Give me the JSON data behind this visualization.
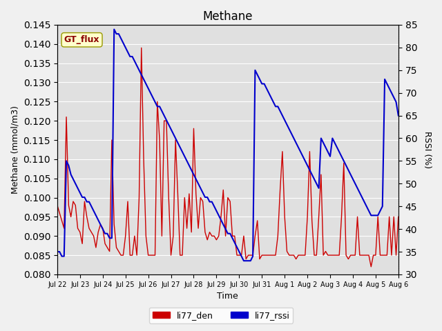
{
  "title": "Methane",
  "ylabel_left": "Methane (mmol/m3)",
  "ylabel_right": "RSSI (%)",
  "xlabel": "Time",
  "ylim_left": [
    0.08,
    0.145
  ],
  "ylim_right": [
    30,
    85
  ],
  "legend_label1": "li77_den",
  "legend_label2": "li77_rssi",
  "annotation_box": "GT_flux",
  "color_red": "#cc0000",
  "color_blue": "#0000cc",
  "background_color": "#e8e8e8",
  "plot_bg": "#d8d8d8",
  "x_ticks": [
    "Jul 22",
    "Jul 23",
    "Jul 24",
    "Jul 25",
    "Jul 26",
    "Jul 27",
    "Jul 28",
    "Jul 29",
    "Jul 30",
    "Jul 31",
    "Aug 1",
    "Aug 2",
    "Aug 3",
    "Aug 4",
    "Aug 5",
    "Aug 6"
  ],
  "red_x": [
    0,
    0.1,
    0.2,
    0.3,
    0.4,
    0.5,
    0.6,
    0.7,
    0.8,
    0.9,
    1.0,
    1.1,
    1.2,
    1.3,
    1.4,
    1.5,
    1.6,
    1.7,
    1.8,
    1.9,
    2.0,
    2.1,
    2.2,
    2.3,
    2.4,
    2.5,
    2.6,
    2.7,
    2.8,
    2.9,
    3.0,
    3.1,
    3.2,
    3.3,
    3.4,
    3.5,
    3.6,
    3.7,
    3.8,
    3.9,
    4.0,
    4.1,
    4.2,
    4.3,
    4.4,
    4.5,
    4.6,
    4.7,
    4.8,
    4.9,
    5.0,
    5.1,
    5.2,
    5.3,
    5.4,
    5.5,
    5.6,
    5.7,
    5.8,
    5.9,
    6.0,
    6.1,
    6.2,
    6.3,
    6.4,
    6.5,
    6.6,
    6.7,
    6.8,
    6.9,
    7.0,
    7.1,
    7.2,
    7.3,
    7.4,
    7.5,
    7.6,
    7.7,
    7.8,
    7.9,
    8.0,
    8.1,
    8.2,
    8.3,
    8.4,
    8.5,
    8.6,
    8.7,
    8.8,
    8.9,
    9.0,
    9.1,
    9.2,
    9.3,
    9.4,
    9.5,
    9.6,
    9.7,
    9.8,
    9.9,
    10.0,
    10.1,
    10.2,
    10.3,
    10.4,
    10.5,
    10.6,
    10.7,
    10.8,
    10.9,
    11.0,
    11.1,
    11.2,
    11.3,
    11.4,
    11.5,
    11.6,
    11.7,
    11.8,
    11.9,
    12.0,
    12.1,
    12.2,
    12.3,
    12.4,
    12.5,
    12.6,
    12.7,
    12.8,
    12.9,
    13.0,
    13.1,
    13.2,
    13.3,
    13.4,
    13.5,
    13.6,
    13.7,
    13.8,
    13.9,
    14.0,
    14.1,
    14.2,
    14.3,
    14.4,
    14.5,
    14.6,
    14.7,
    14.8,
    14.9,
    15.0
  ],
  "red_y": [
    0.098,
    0.096,
    0.094,
    0.092,
    0.121,
    0.098,
    0.095,
    0.099,
    0.098,
    0.092,
    0.091,
    0.088,
    0.099,
    0.095,
    0.092,
    0.091,
    0.09,
    0.087,
    0.091,
    0.093,
    0.092,
    0.088,
    0.087,
    0.086,
    0.115,
    0.093,
    0.087,
    0.086,
    0.085,
    0.085,
    0.09,
    0.099,
    0.085,
    0.085,
    0.09,
    0.085,
    0.1,
    0.139,
    0.11,
    0.09,
    0.085,
    0.085,
    0.085,
    0.085,
    0.125,
    0.115,
    0.09,
    0.12,
    0.12,
    0.1,
    0.085,
    0.09,
    0.115,
    0.101,
    0.085,
    0.085,
    0.1,
    0.092,
    0.101,
    0.091,
    0.118,
    0.101,
    0.092,
    0.1,
    0.099,
    0.091,
    0.089,
    0.091,
    0.09,
    0.09,
    0.089,
    0.09,
    0.095,
    0.102,
    0.09,
    0.1,
    0.099,
    0.09,
    0.09,
    0.085,
    0.085,
    0.085,
    0.09,
    0.084,
    0.085,
    0.085,
    0.085,
    0.09,
    0.094,
    0.084,
    0.085,
    0.085,
    0.085,
    0.085,
    0.085,
    0.085,
    0.085,
    0.09,
    0.102,
    0.112,
    0.095,
    0.086,
    0.085,
    0.085,
    0.085,
    0.084,
    0.085,
    0.085,
    0.085,
    0.085,
    0.095,
    0.112,
    0.094,
    0.085,
    0.085,
    0.095,
    0.106,
    0.085,
    0.086,
    0.085,
    0.085,
    0.085,
    0.085,
    0.085,
    0.085,
    0.095,
    0.109,
    0.085,
    0.084,
    0.085,
    0.085,
    0.085,
    0.095,
    0.085,
    0.085,
    0.085,
    0.085,
    0.085,
    0.082,
    0.085,
    0.085,
    0.095,
    0.085,
    0.085,
    0.085,
    0.085,
    0.095,
    0.085,
    0.095,
    0.085,
    0.095
  ],
  "blue_x": [
    0,
    0.1,
    0.2,
    0.3,
    0.4,
    0.5,
    0.6,
    0.7,
    0.8,
    0.9,
    1.0,
    1.1,
    1.2,
    1.3,
    1.4,
    1.5,
    1.6,
    1.7,
    1.8,
    1.9,
    2.0,
    2.1,
    2.2,
    2.3,
    2.4,
    2.5,
    2.6,
    2.7,
    2.8,
    2.9,
    3.0,
    3.1,
    3.2,
    3.3,
    3.4,
    3.5,
    3.6,
    3.7,
    3.8,
    3.9,
    4.0,
    4.1,
    4.2,
    4.3,
    4.4,
    4.5,
    4.6,
    4.7,
    4.8,
    4.9,
    5.0,
    5.1,
    5.2,
    5.3,
    5.4,
    5.5,
    5.6,
    5.7,
    5.8,
    5.9,
    6.0,
    6.1,
    6.2,
    6.3,
    6.4,
    6.5,
    6.6,
    6.7,
    6.8,
    6.9,
    7.0,
    7.1,
    7.2,
    7.3,
    7.4,
    7.5,
    7.6,
    7.7,
    7.8,
    7.9,
    8.0,
    8.1,
    8.2,
    8.3,
    8.4,
    8.5,
    8.6,
    8.7,
    8.8,
    8.9,
    9.0,
    9.1,
    9.2,
    9.3,
    9.4,
    9.5,
    9.6,
    9.7,
    9.8,
    9.9,
    10.0,
    10.1,
    10.2,
    10.3,
    10.4,
    10.5,
    10.6,
    10.7,
    10.8,
    10.9,
    11.0,
    11.1,
    11.2,
    11.3,
    11.4,
    11.5,
    11.6,
    11.7,
    11.8,
    11.9,
    12.0,
    12.1,
    12.2,
    12.3,
    12.4,
    12.5,
    12.6,
    12.7,
    12.8,
    12.9,
    13.0,
    13.1,
    13.2,
    13.3,
    13.4,
    13.5,
    13.6,
    13.7,
    13.8,
    13.9,
    14.0,
    14.1,
    14.2,
    14.3,
    14.4,
    14.5,
    14.6,
    14.7,
    14.8,
    14.9,
    15.0
  ],
  "blue_y": [
    35,
    35,
    34,
    34,
    55,
    54,
    52,
    51,
    50,
    49,
    48,
    47,
    47,
    46,
    46,
    45,
    44,
    43,
    42,
    41,
    40,
    39,
    39,
    38,
    38,
    84,
    83,
    83,
    82,
    81,
    80,
    79,
    78,
    78,
    77,
    76,
    75,
    74,
    73,
    72,
    71,
    70,
    69,
    68,
    67,
    67,
    66,
    65,
    64,
    63,
    62,
    61,
    60,
    59,
    58,
    57,
    56,
    55,
    54,
    53,
    52,
    51,
    50,
    49,
    48,
    47,
    47,
    46,
    46,
    45,
    44,
    43,
    42,
    41,
    40,
    39,
    39,
    38,
    37,
    36,
    35,
    34,
    33,
    33,
    33,
    33,
    34,
    75,
    74,
    73,
    72,
    72,
    71,
    70,
    69,
    68,
    67,
    67,
    66,
    65,
    64,
    63,
    62,
    61,
    60,
    59,
    58,
    57,
    56,
    55,
    54,
    53,
    52,
    51,
    50,
    49,
    60,
    59,
    58,
    57,
    56,
    60,
    59,
    58,
    57,
    56,
    55,
    54,
    53,
    52,
    51,
    50,
    49,
    48,
    47,
    46,
    45,
    44,
    43,
    43,
    43,
    43,
    44,
    45,
    73,
    72,
    71,
    70,
    69,
    68,
    65
  ]
}
